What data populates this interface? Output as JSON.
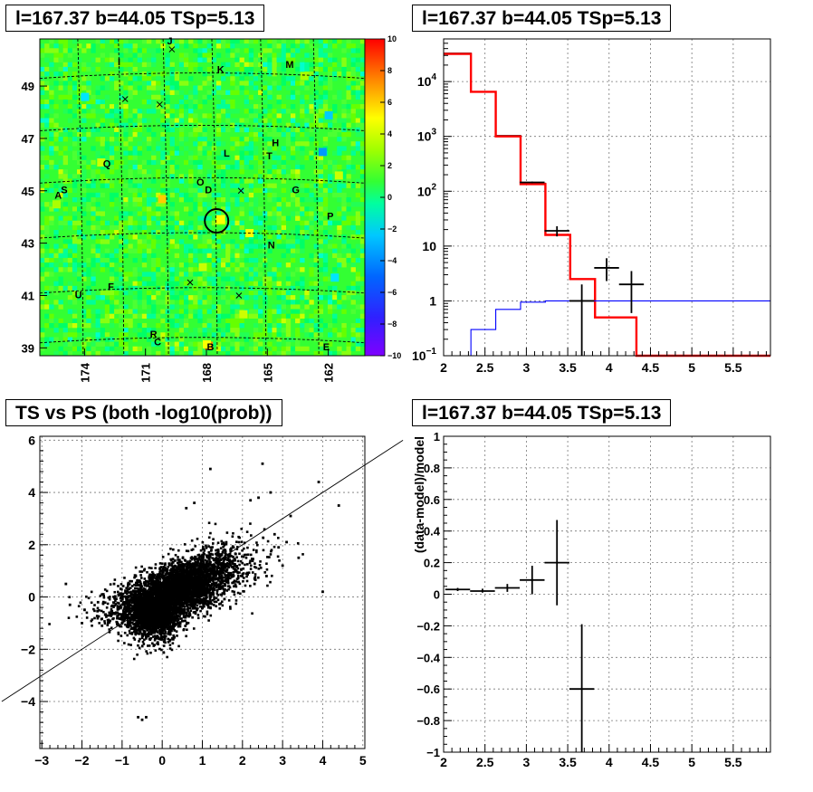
{
  "chart_data": [
    {
      "type": "heatmap",
      "title": "l=167.37 b=44.05 TSp=5.13",
      "xlim": [
        176.2,
        160.2
      ],
      "ylim": [
        38.7,
        50.8
      ],
      "x_ticks": [
        "174",
        "171",
        "168",
        "165",
        "162"
      ],
      "y_ticks": [
        "39",
        "41",
        "43",
        "45",
        "47",
        "49"
      ],
      "colorbar": {
        "range": [
          -10,
          10
        ],
        "ticks": [
          "−10",
          "−8",
          "−6",
          "−4",
          "−2",
          "0",
          "2",
          "4",
          "6",
          "8",
          "10"
        ]
      },
      "source_labels": [
        {
          "label": "J",
          "l": 169.8,
          "b": 50.6
        },
        {
          "label": "I",
          "l": 172.3,
          "b": 49.8
        },
        {
          "label": "K",
          "l": 167.3,
          "b": 49.5
        },
        {
          "label": "M",
          "l": 163.9,
          "b": 49.7
        },
        {
          "label": "H",
          "l": 164.6,
          "b": 46.7
        },
        {
          "label": "L",
          "l": 167.0,
          "b": 46.3
        },
        {
          "label": "T",
          "l": 164.9,
          "b": 46.2
        },
        {
          "label": "Q",
          "l": 172.9,
          "b": 45.9
        },
        {
          "label": "O",
          "l": 168.3,
          "b": 45.2
        },
        {
          "label": "D",
          "l": 167.9,
          "b": 44.9
        },
        {
          "label": "G",
          "l": 163.6,
          "b": 44.9
        },
        {
          "label": "S",
          "l": 175.0,
          "b": 44.9
        },
        {
          "label": "A",
          "l": 175.3,
          "b": 44.7
        },
        {
          "label": "P",
          "l": 161.9,
          "b": 43.9
        },
        {
          "label": "N",
          "l": 164.8,
          "b": 42.8
        },
        {
          "label": "F",
          "l": 172.7,
          "b": 41.2
        },
        {
          "label": "U",
          "l": 174.3,
          "b": 40.9
        },
        {
          "label": "R",
          "l": 170.6,
          "b": 39.4
        },
        {
          "label": "C",
          "l": 170.4,
          "b": 39.1
        },
        {
          "label": "B",
          "l": 167.8,
          "b": 38.9
        },
        {
          "label": "E",
          "l": 162.1,
          "b": 38.9
        }
      ],
      "crosses": [
        {
          "l": 172.0,
          "b": 48.5
        },
        {
          "l": 170.3,
          "b": 48.3
        },
        {
          "l": 169.7,
          "b": 50.4
        },
        {
          "l": 166.3,
          "b": 45.0
        },
        {
          "l": 168.8,
          "b": 41.5
        },
        {
          "l": 166.4,
          "b": 41.0
        }
      ],
      "circle": {
        "l": 167.5,
        "b": 43.85
      }
    },
    {
      "type": "line",
      "title": "l=167.37 b=44.05 TSp=5.13",
      "xlim": [
        2,
        5.95
      ],
      "ylim": [
        0.1,
        60000
      ],
      "y_scale": "log",
      "grid": true,
      "x_ticks": [
        "2",
        "2.5",
        "3",
        "3.5",
        "4",
        "4.5",
        "5",
        "5.5"
      ],
      "y_ticks": [
        {
          "value": 0.1,
          "label": "10",
          "exp": "−1"
        },
        {
          "value": 1,
          "label": "1",
          "exp": ""
        },
        {
          "value": 10,
          "label": "10",
          "exp": ""
        },
        {
          "value": 100,
          "label": "10",
          "exp": "2"
        },
        {
          "value": 1000,
          "label": "10",
          "exp": "3"
        },
        {
          "value": 10000,
          "label": "10",
          "exp": "4"
        }
      ],
      "model_red": {
        "edges": [
          2.0,
          2.33,
          2.63,
          2.93,
          3.23,
          3.53,
          3.83,
          4.33,
          5.95
        ],
        "values": [
          32000,
          6500,
          1000,
          135,
          16,
          2.5,
          0.5,
          0.1
        ]
      },
      "model_black": {
        "edges": [
          2.0,
          2.33,
          2.63,
          2.93,
          3.23,
          3.53,
          3.83,
          4.33,
          5.95
        ],
        "values": [
          33000,
          6600,
          1040,
          140,
          16,
          2.5,
          0.5,
          0.1
        ]
      },
      "model_blue": {
        "edges": [
          2.0,
          2.33,
          2.63,
          2.93,
          3.23,
          3.53,
          3.83,
          4.33,
          5.95
        ],
        "values": [
          0.1,
          0.3,
          0.7,
          0.95,
          1.0,
          1.0,
          1.0,
          1.0
        ]
      },
      "data_points": [
        {
          "x": 3.07,
          "y": 145,
          "xerr": 0.15,
          "ylo": 140,
          "yhi": 150
        },
        {
          "x": 3.37,
          "y": 19,
          "xerr": 0.15,
          "ylo": 15,
          "yhi": 23
        },
        {
          "x": 3.67,
          "y": 1.0,
          "xerr": 0.15,
          "ylo": 0.1,
          "yhi": 2.0
        },
        {
          "x": 3.97,
          "y": 4.0,
          "xerr": 0.15,
          "ylo": 2.3,
          "yhi": 6.0
        },
        {
          "x": 4.27,
          "y": 2.0,
          "xerr": 0.15,
          "ylo": 0.6,
          "yhi": 3.5
        }
      ],
      "colors": {
        "red": "#ff0000",
        "blue": "#0000ff",
        "black": "#000000"
      }
    },
    {
      "type": "scatter",
      "title": "TS vs PS (both -log10(prob))",
      "xlim": [
        -3.05,
        5.05
      ],
      "ylim": [
        -5.8,
        6.15
      ],
      "grid": true,
      "x_ticks": [
        {
          "value": -3,
          "label": "−3"
        },
        {
          "value": -2,
          "label": "−2"
        },
        {
          "value": -1,
          "label": "−1"
        },
        {
          "value": 0,
          "label": "0"
        },
        {
          "value": 1,
          "label": "1"
        },
        {
          "value": 2,
          "label": "2"
        },
        {
          "value": 3,
          "label": "3"
        },
        {
          "value": 4,
          "label": "4"
        },
        {
          "value": 5,
          "label": "5"
        }
      ],
      "y_ticks": [
        {
          "value": -4,
          "label": "−4"
        },
        {
          "value": -2,
          "label": "−2"
        },
        {
          "value": 0,
          "label": "0"
        },
        {
          "value": 2,
          "label": "2"
        },
        {
          "value": 4,
          "label": "4"
        },
        {
          "value": 6,
          "label": "6"
        }
      ],
      "reference_line": {
        "slope": 1,
        "intercept": 0
      },
      "clusters": [
        {
          "cx": -0.2,
          "cy": -0.5,
          "sx": 0.35,
          "sy": 0.55,
          "n": 2400
        },
        {
          "cx": 0.6,
          "cy": 0.4,
          "sx": 0.4,
          "sy": 0.45,
          "n": 1800
        },
        {
          "cx": 1.2,
          "cy": 1.0,
          "sx": 0.45,
          "sy": 0.45,
          "n": 500
        },
        {
          "cx": 1.8,
          "cy": 1.4,
          "sx": 0.55,
          "sy": 0.55,
          "n": 200
        },
        {
          "cx": -0.9,
          "cy": -0.5,
          "sx": 0.5,
          "sy": 0.4,
          "n": 300
        }
      ],
      "outliers": [
        [
          -2.4,
          0.5
        ],
        [
          -2.3,
          -0.3
        ],
        [
          -1.6,
          -0.2
        ],
        [
          -1.5,
          0.1
        ],
        [
          -0.8,
          0.6
        ],
        [
          -0.6,
          -4.6
        ],
        [
          -0.5,
          -4.7
        ],
        [
          -0.4,
          -4.6
        ],
        [
          -1.5,
          -1.1
        ],
        [
          -2.0,
          -1.0
        ],
        [
          1.2,
          4.9
        ],
        [
          2.2,
          3.7
        ],
        [
          2.4,
          3.8
        ],
        [
          2.5,
          5.1
        ],
        [
          2.7,
          4.0
        ],
        [
          3.2,
          3.1
        ],
        [
          3.9,
          4.4
        ],
        [
          4.4,
          3.5
        ],
        [
          2.9,
          1.9
        ],
        [
          3.4,
          1.5
        ],
        [
          4.0,
          0.2
        ],
        [
          3.1,
          2.1
        ],
        [
          0.8,
          3.6
        ],
        [
          0.6,
          3.4
        ],
        [
          2.8,
          2.4
        ],
        [
          2.6,
          0.8
        ],
        [
          3.0,
          1.2
        ],
        [
          2.3,
          0.5
        ],
        [
          -1.0,
          -1.0
        ],
        [
          -1.2,
          0.5
        ]
      ]
    },
    {
      "type": "scatter",
      "title": "l=167.37 b=44.05 TSp=5.13",
      "ylabel": "(data-model)/model",
      "xlim": [
        2,
        5.95
      ],
      "ylim": [
        -1,
        1
      ],
      "grid": true,
      "x_ticks": [
        "2",
        "2.5",
        "3",
        "3.5",
        "4",
        "4.5",
        "5",
        "5.5"
      ],
      "y_ticks": [
        {
          "value": -1,
          "label": "−1"
        },
        {
          "value": -0.8,
          "label": "−0.8"
        },
        {
          "value": -0.6,
          "label": "−0.6"
        },
        {
          "value": -0.4,
          "label": "−0.4"
        },
        {
          "value": -0.2,
          "label": "−0.2"
        },
        {
          "value": 0,
          "label": "0"
        },
        {
          "value": 0.2,
          "label": "0.2"
        },
        {
          "value": 0.4,
          "label": "0.4"
        },
        {
          "value": 0.6,
          "label": "0.6"
        },
        {
          "value": 0.8,
          "label": "0.8"
        },
        {
          "value": 1,
          "label": "1"
        }
      ],
      "data_points": [
        {
          "x": 2.17,
          "y": 0.03,
          "xerr": 0.15,
          "ylo": 0.02,
          "yhi": 0.04
        },
        {
          "x": 2.47,
          "y": 0.02,
          "xerr": 0.15,
          "ylo": 0.01,
          "yhi": 0.035
        },
        {
          "x": 2.77,
          "y": 0.04,
          "xerr": 0.15,
          "ylo": 0.015,
          "yhi": 0.065
        },
        {
          "x": 3.07,
          "y": 0.09,
          "xerr": 0.15,
          "ylo": 0.0,
          "yhi": 0.18
        },
        {
          "x": 3.37,
          "y": 0.2,
          "xerr": 0.15,
          "ylo": -0.07,
          "yhi": 0.47
        },
        {
          "x": 3.67,
          "y": -0.6,
          "xerr": 0.15,
          "ylo": -1.0,
          "yhi": -0.19
        }
      ]
    }
  ]
}
